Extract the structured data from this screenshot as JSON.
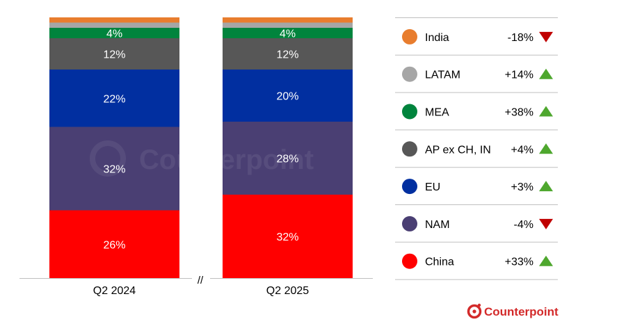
{
  "chart_data": {
    "type": "bar",
    "stacked": true,
    "normalized_to": 100,
    "categories": [
      "Q2 2024",
      "Q2 2025"
    ],
    "axis_break_label": "//",
    "series": [
      {
        "name": "China",
        "color": "#ff0000",
        "values": [
          26,
          32
        ],
        "labels": [
          "26%",
          "32%"
        ]
      },
      {
        "name": "NAM",
        "color": "#4a3f73",
        "values": [
          32,
          28
        ],
        "labels": [
          "32%",
          "28%"
        ]
      },
      {
        "name": "EU",
        "color": "#012fa0",
        "values": [
          22,
          20
        ],
        "labels": [
          "22%",
          "20%"
        ]
      },
      {
        "name": "AP ex CH, IN",
        "color": "#575757",
        "values": [
          12,
          12
        ],
        "labels": [
          "12%",
          "12%"
        ]
      },
      {
        "name": "MEA",
        "color": "#00843d",
        "values": [
          4,
          4
        ],
        "labels": [
          "4%",
          "4%"
        ]
      },
      {
        "name": "LATAM",
        "color": "#a6a6a6",
        "values": [
          2,
          2
        ],
        "labels": [
          "",
          ""
        ]
      },
      {
        "name": "India",
        "color": "#e87d2e",
        "values": [
          2,
          2
        ],
        "labels": [
          "",
          ""
        ]
      }
    ],
    "legend": [
      {
        "name": "India",
        "change": "-18%",
        "direction": "down",
        "color": "#e87d2e"
      },
      {
        "name": "LATAM",
        "change": "+14%",
        "direction": "up",
        "color": "#a6a6a6"
      },
      {
        "name": "MEA",
        "change": "+38%",
        "direction": "up",
        "color": "#00843d"
      },
      {
        "name": "AP ex CH, IN",
        "change": "+4%",
        "direction": "up",
        "color": "#575757"
      },
      {
        "name": "EU",
        "change": "+3%",
        "direction": "up",
        "color": "#012fa0"
      },
      {
        "name": "NAM",
        "change": "-4%",
        "direction": "down",
        "color": "#4a3f73"
      },
      {
        "name": "China",
        "change": "+33%",
        "direction": "up",
        "color": "#ff0000"
      }
    ],
    "legend_placement": "right",
    "arrow_colors": {
      "up": "#4ea72e",
      "down": "#c00000"
    },
    "grid": false
  },
  "brand": {
    "name": "Counterpoint",
    "color": "#d32a2a",
    "icon": "counterpoint-logo-icon"
  },
  "watermark": {
    "text": "Counterpoint"
  }
}
